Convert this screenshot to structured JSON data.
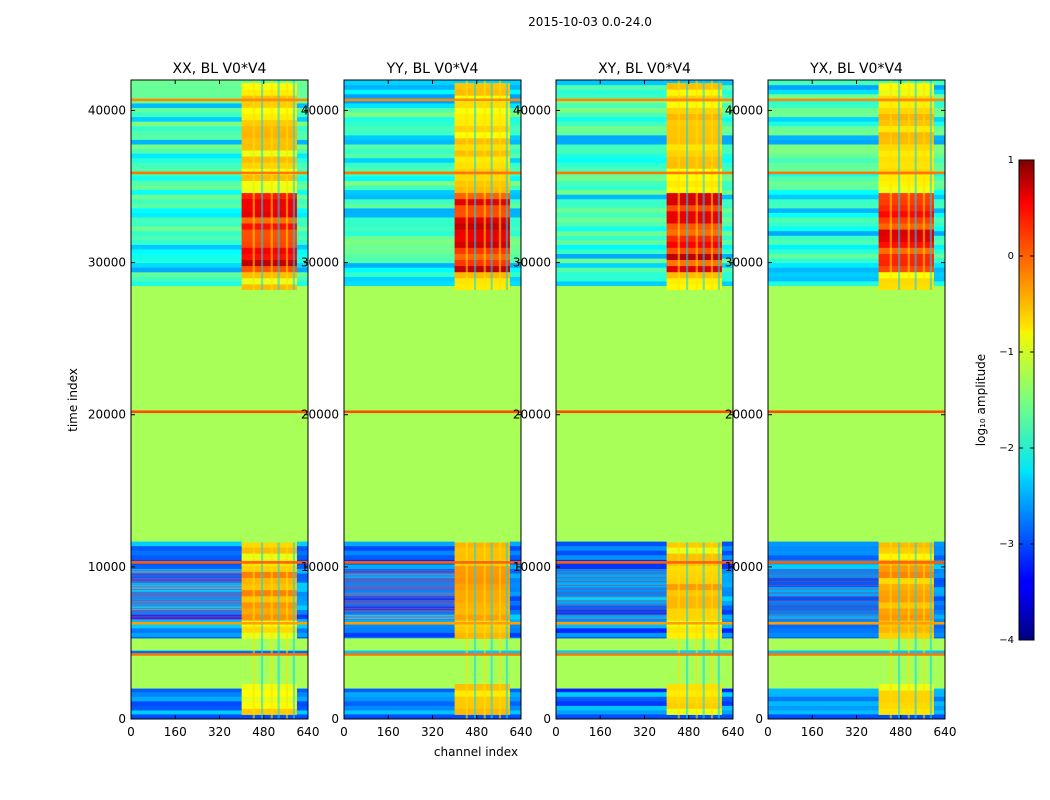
{
  "chart_data": {
    "type": "heatmap",
    "suptitle": "2015-10-03 0.0-24.0",
    "xlabel": "channel index",
    "ylabel": "time index",
    "xlim": [
      0,
      640
    ],
    "ylim": [
      0,
      42000
    ],
    "xticks": [
      0,
      160,
      320,
      480,
      640
    ],
    "yticks": [
      0,
      10000,
      20000,
      30000,
      40000
    ],
    "colorbar": {
      "label": "log₁₀ amplitude",
      "range": [
        -4,
        1
      ],
      "ticks": [
        1,
        0,
        -1,
        -2,
        -3,
        -4
      ],
      "tick_labels": [
        "1",
        "0",
        "−1",
        "−2",
        "−3",
        "−4"
      ],
      "colormap": "jet"
    },
    "panels": [
      {
        "title": "XX, BL V0*V4",
        "bright_channels": [
          400,
          600
        ],
        "dense_bands": true
      },
      {
        "title": "YY, BL V0*V4",
        "bright_channels": [
          400,
          600
        ],
        "dense_bands": true
      },
      {
        "title": "XY, BL V0*V4",
        "bright_channels": [
          400,
          600
        ],
        "dense_bands": false
      },
      {
        "title": "YX, BL V0*V4",
        "bright_channels": [
          400,
          600
        ],
        "dense_bands": false
      }
    ],
    "flagged_regions": [
      {
        "t_start": 0,
        "t_end": 300,
        "value": -3
      },
      {
        "t_start": 2000,
        "t_end": 4200,
        "value": -1.3
      },
      {
        "t_start": 4500,
        "t_end": 5300,
        "value": -1.3
      },
      {
        "t_start": 11700,
        "t_end": 28200,
        "value": -1.3
      }
    ],
    "line_features": [
      {
        "t": 4250,
        "value": -0.2
      },
      {
        "t": 6300,
        "value": -0.4
      },
      {
        "t": 10300,
        "value": -0.1
      },
      {
        "t": 20200,
        "value": 0
      },
      {
        "t": 35900,
        "value": -0.2
      },
      {
        "t": 40700,
        "value": -0.3
      }
    ]
  }
}
